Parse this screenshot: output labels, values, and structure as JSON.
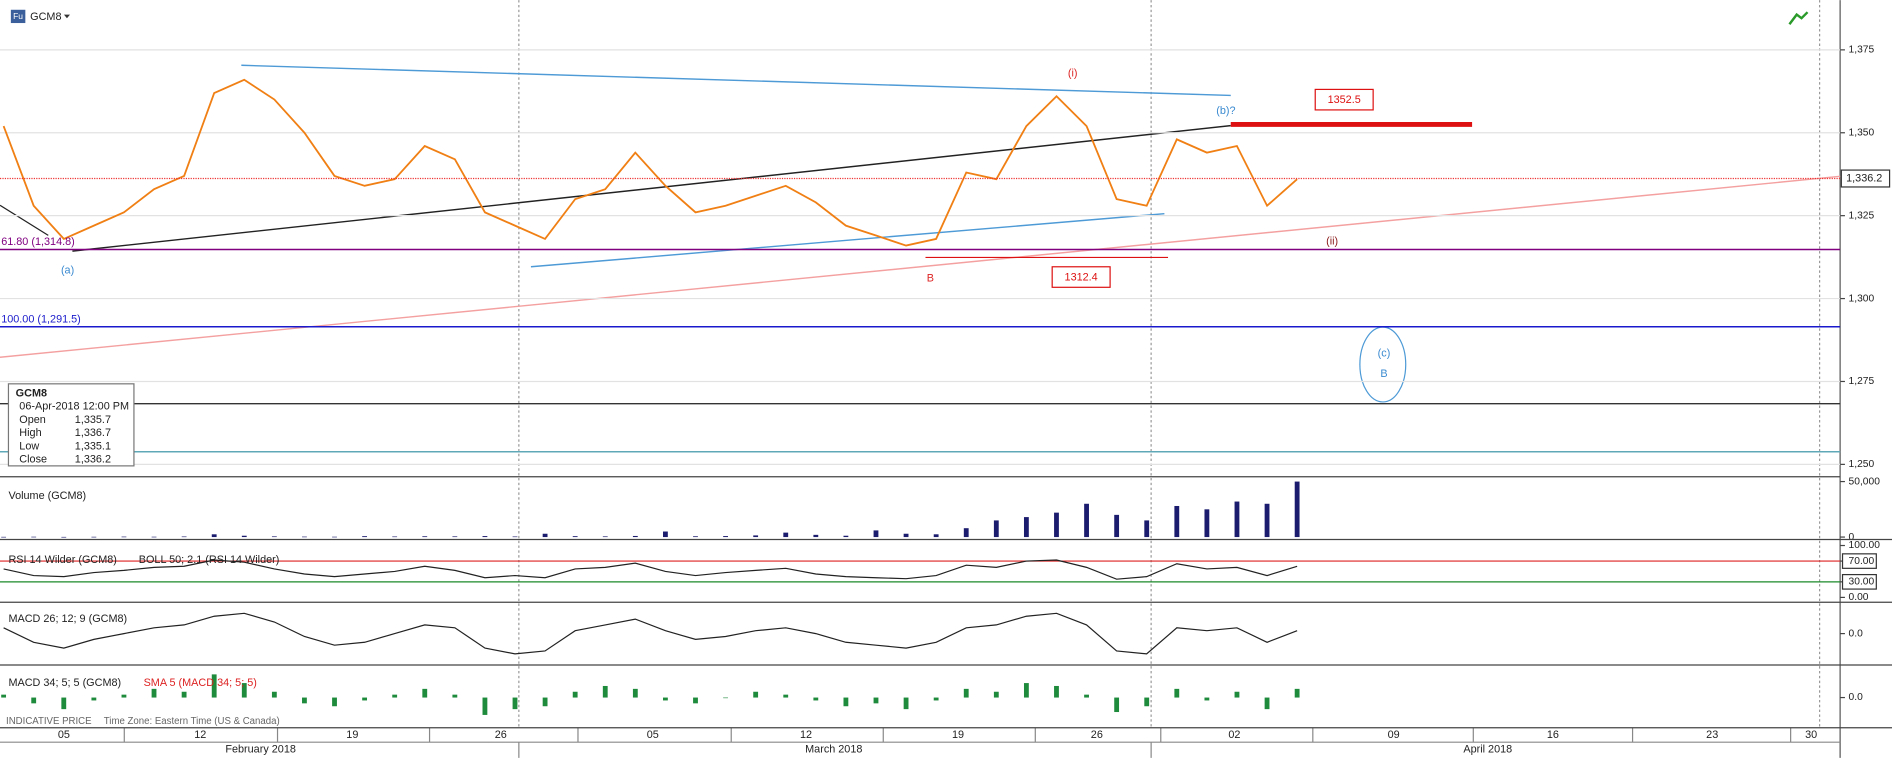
{
  "header": {
    "icon": "Fu",
    "symbol": "GCM8"
  },
  "chart_data": [
    {
      "type": "line",
      "series": [
        {
          "name": "GCM8",
          "color": "#f07f14",
          "values": [
            1352,
            1328,
            1318,
            1322,
            1326,
            1333,
            1337,
            1362,
            1366,
            1360,
            1350,
            1337,
            1334,
            1336,
            1346,
            1342,
            1326,
            1322,
            1318,
            1330,
            1333,
            1344,
            1334,
            1326,
            1328,
            1331,
            1334,
            1329,
            1322,
            1319,
            1316,
            1318,
            1338,
            1336,
            1352,
            1361,
            1352,
            1330,
            1328,
            1348,
            1344,
            1346,
            1328,
            1336
          ]
        }
      ],
      "ylim": [
        1247,
        1390
      ],
      "yticks": [
        {
          "value": 1250,
          "label": "1,250"
        },
        {
          "value": 1275,
          "label": "1,275"
        },
        {
          "value": 1300,
          "label": "1,300"
        },
        {
          "value": 1325,
          "label": "1,325"
        },
        {
          "value": 1350,
          "label": "1,350"
        },
        {
          "value": 1375,
          "label": "1,375"
        }
      ],
      "last_price": {
        "value": 1336.2,
        "label": "1,336.2"
      },
      "levels": [
        {
          "label": "61.80 (1,314.8)",
          "value": 1314.8,
          "color": "#800080"
        },
        {
          "label": "100.00 (1,291.5)",
          "value": 1291.5,
          "color": "#1a1acc"
        },
        {
          "value": 1268.3,
          "color": "#333333"
        },
        {
          "value": 1253.8,
          "color": "#5fa8b8"
        }
      ],
      "targets": [
        1352.5,
        1312.4
      ],
      "annotations": [
        "(i)",
        "(b)?",
        "(ii)",
        "(a)",
        "B",
        "(c)",
        "B"
      ]
    },
    {
      "type": "bar",
      "title": "Volume (GCM8)",
      "color": "#1c1c6e",
      "values": [
        200,
        300,
        150,
        250,
        400,
        300,
        500,
        2500,
        1200,
        600,
        400,
        300,
        800,
        500,
        700,
        600,
        900,
        500,
        3000,
        800,
        600,
        1000,
        5000,
        700,
        900,
        1500,
        4000,
        2000,
        1200,
        6000,
        3000,
        2500,
        8000,
        15000,
        18000,
        22000,
        30000,
        20000,
        15000,
        28000,
        25000,
        32000,
        30000,
        50000
      ],
      "ylim": [
        0,
        50000
      ],
      "yticks": [
        0,
        {
          "value": 50000,
          "label": "50,000"
        }
      ]
    },
    {
      "type": "line",
      "title": "RSI 14 Wilder (GCM8)",
      "subtitle": "BOLL 50; 2.1 (RSI 14 Wilder)",
      "series": [
        {
          "name": "RSI",
          "color": "#222222",
          "values": [
            55,
            42,
            40,
            48,
            52,
            58,
            60,
            72,
            68,
            55,
            45,
            40,
            45,
            50,
            60,
            52,
            38,
            42,
            38,
            55,
            58,
            66,
            50,
            42,
            48,
            52,
            56,
            45,
            40,
            38,
            36,
            42,
            62,
            58,
            70,
            72,
            58,
            35,
            40,
            65,
            55,
            58,
            42,
            60
          ]
        }
      ],
      "ylim": [
        0,
        100
      ],
      "yticks": [
        {
          "value": 0,
          "label": "0.00"
        },
        {
          "value": 30,
          "label": "30.00"
        },
        {
          "value": 70,
          "label": "70.00"
        },
        {
          "value": 100,
          "label": "100.00"
        }
      ]
    },
    {
      "type": "line",
      "title": "MACD 26; 12; 9 (GCM8)",
      "series": [
        {
          "name": "MACD",
          "color": "#222222",
          "values": [
            2,
            -3,
            -5,
            -2,
            0,
            2,
            3,
            6,
            7,
            4,
            -1,
            -4,
            -3,
            0,
            3,
            2,
            -5,
            -7,
            -6,
            1,
            3,
            5,
            1,
            -2,
            -1,
            1,
            2,
            0,
            -3,
            -4,
            -5,
            -3,
            2,
            3,
            6,
            7,
            3,
            -6,
            -7,
            2,
            1,
            2,
            -3,
            1
          ]
        }
      ],
      "ylim": [
        -10,
        10
      ],
      "yticks": [
        {
          "value": 0,
          "label": "0.0"
        }
      ]
    },
    {
      "type": "bar",
      "title": "MACD 34; 5; 5 (GCM8)",
      "subtitle": "SMA 5 (MACD 34; 5; 5)",
      "color": "#1e8a3c",
      "values": [
        1,
        -2,
        -4,
        -1,
        1,
        3,
        2,
        8,
        5,
        2,
        -2,
        -3,
        -1,
        1,
        3,
        1,
        -6,
        -4,
        -3,
        2,
        4,
        3,
        -1,
        -2,
        0,
        2,
        1,
        -1,
        -3,
        -2,
        -4,
        -1,
        3,
        2,
        5,
        4,
        1,
        -5,
        -3,
        3,
        -1,
        2,
        -4,
        3
      ],
      "ylim": [
        -10,
        10
      ],
      "yticks": [
        {
          "value": 0,
          "label": "0.0"
        }
      ]
    }
  ],
  "info": {
    "symbol": "GCM8",
    "datetime": "06-Apr-2018 12:00 PM",
    "rows": [
      [
        "Open",
        "1,335.7"
      ],
      [
        "High",
        "1,336.7"
      ],
      [
        "Low",
        "1,335.1"
      ],
      [
        "Close",
        "1,336.2"
      ]
    ]
  },
  "x_axis": {
    "days": [
      "05",
      "12",
      "19",
      "26",
      "05",
      "12",
      "19",
      "26",
      "02",
      "09",
      "16",
      "23",
      "30"
    ],
    "months": [
      "February 2018",
      "March 2018",
      "April 2018"
    ]
  },
  "footer": {
    "note": "INDICATIVE PRICE",
    "timezone": "Time Zone: Eastern Time (US & Canada)"
  }
}
